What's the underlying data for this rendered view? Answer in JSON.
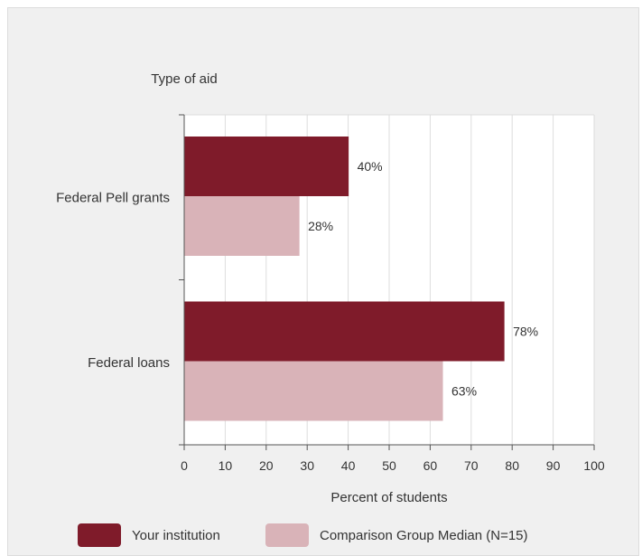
{
  "chart_data": {
    "type": "bar",
    "orientation": "horizontal",
    "title": "",
    "ylabel": "Type of aid",
    "xlabel": "Percent of students",
    "categories": [
      "Federal Pell grants",
      "Federal loans"
    ],
    "series": [
      {
        "name": "Your institution",
        "values": [
          40,
          78
        ],
        "color": "#7f1b2a"
      },
      {
        "name": "Comparison Group Median (N=15)",
        "values": [
          28,
          63
        ],
        "color": "#d9b3b8"
      }
    ],
    "value_suffix": "%",
    "xlim": [
      0,
      100
    ],
    "xticks": [
      0,
      10,
      20,
      30,
      40,
      50,
      60,
      70,
      80,
      90,
      100
    ],
    "grid": "vertical",
    "legend_position": "bottom",
    "plot_background": "#ffffff"
  }
}
